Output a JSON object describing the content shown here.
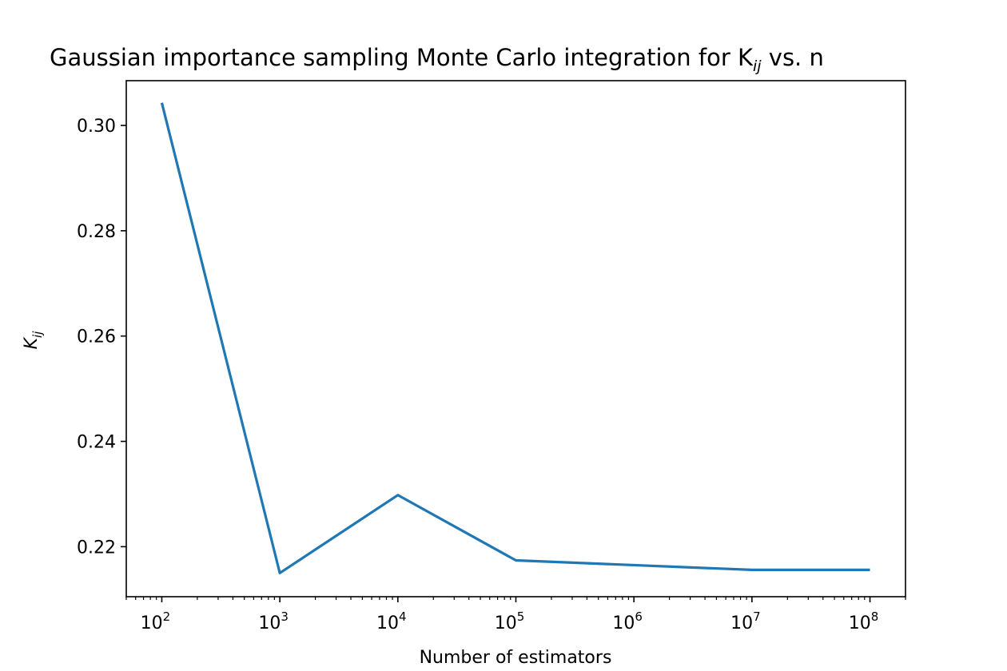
{
  "chart_data": {
    "type": "line",
    "title": "Gaussian importance sampling Monte Carlo integration for K",
    "title_sub": "ij",
    "title_suffix": " vs. n",
    "xlabel": "Number of estimators",
    "ylabel": "K",
    "ylabel_sub": "ij",
    "xscale": "log",
    "xlim": [
      50,
      200000000
    ],
    "ylim": [
      0.2105,
      0.3085
    ],
    "x_tick_base": "10",
    "x_ticks": [
      {
        "value": 100,
        "exp": "2"
      },
      {
        "value": 1000,
        "exp": "3"
      },
      {
        "value": 10000,
        "exp": "4"
      },
      {
        "value": 100000,
        "exp": "5"
      },
      {
        "value": 1000000,
        "exp": "6"
      },
      {
        "value": 10000000,
        "exp": "7"
      },
      {
        "value": 100000000,
        "exp": "8"
      }
    ],
    "y_ticks": [
      {
        "value": 0.22,
        "label": "0.22"
      },
      {
        "value": 0.24,
        "label": "0.24"
      },
      {
        "value": 0.26,
        "label": "0.26"
      },
      {
        "value": 0.28,
        "label": "0.28"
      },
      {
        "value": 0.3,
        "label": "0.30"
      }
    ],
    "grid": false,
    "series": [
      {
        "color": "#1f77b4",
        "x": [
          100,
          1000,
          10000,
          100000,
          10000000,
          100000000
        ],
        "y": [
          0.3043,
          0.215,
          0.2298,
          0.2174,
          0.2156,
          0.2156
        ]
      }
    ]
  }
}
